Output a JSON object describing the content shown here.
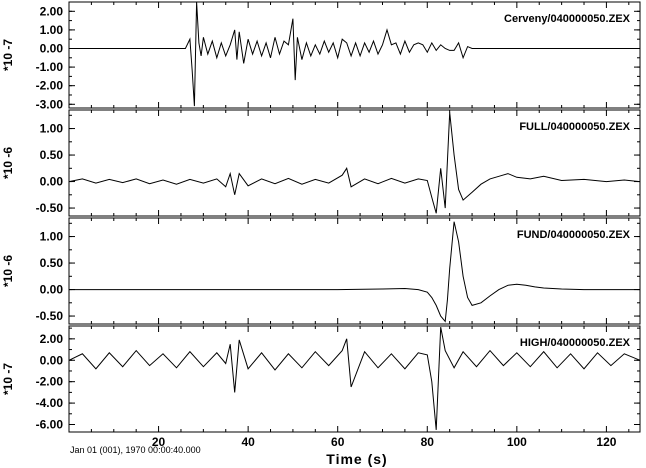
{
  "chart_data": {
    "type": "line",
    "xlabel": "Time (s)",
    "footer": "Jan 01 (001), 1970 00:00:40.000",
    "xlim": [
      0,
      127.5
    ],
    "xticks": [
      20,
      40,
      60,
      80,
      100,
      120
    ],
    "xtick_labels": [
      "20",
      "40",
      "60",
      "80",
      "100",
      "120"
    ],
    "panels": [
      {
        "name": "Cerveny/040000050.ZEX",
        "scale": "*10 -7",
        "ylim": [
          -3.2,
          2.5
        ],
        "yticks": [
          -3.0,
          -2.0,
          -1.0,
          0.0,
          1.0,
          2.0
        ],
        "ytick_labels": [
          "-3.00",
          "-2.00",
          "-1.00",
          "0.00",
          "1.00",
          "2.00"
        ],
        "series": [
          {
            "x": [
              0,
              26,
              27,
              27.5,
              28,
              28.5,
              29,
              29.5,
              30,
              31,
              32,
              33,
              34,
              35,
              36,
              37,
              37.5,
              38,
              39,
              40,
              41,
              42,
              43,
              44,
              45,
              46,
              47,
              48,
              49,
              50,
              50.5,
              51,
              52,
              53,
              54,
              55,
              56,
              57,
              58,
              59,
              60,
              61,
              62,
              63,
              64,
              65,
              66,
              67,
              68,
              69,
              70,
              71,
              72,
              73,
              74,
              75,
              76,
              77,
              78,
              79,
              80,
              81,
              82,
              83,
              84,
              85,
              86,
              87,
              88,
              89,
              90,
              127.5
            ],
            "y": [
              0,
              0,
              0.5,
              -1.2,
              -3.1,
              2.5,
              0.3,
              -0.4,
              0.6,
              -0.3,
              0.4,
              -0.5,
              0.3,
              -0.4,
              0.2,
              1.0,
              -0.6,
              0.9,
              -0.8,
              0.5,
              -0.3,
              0.4,
              -0.4,
              0.3,
              -0.5,
              0.6,
              -0.3,
              0.4,
              0.2,
              1.6,
              -1.7,
              0.6,
              -0.6,
              0.3,
              -0.4,
              0.2,
              -0.3,
              0.4,
              -0.2,
              0.3,
              -0.5,
              0.5,
              0.3,
              -0.4,
              0.3,
              -0.4,
              0.3,
              -0.2,
              0.4,
              -0.3,
              0.2,
              1.0,
              0.2,
              0.3,
              -0.3,
              0.4,
              -0.2,
              0.2,
              0.3,
              0.2,
              -0.2,
              0.3,
              -0.1,
              0.2,
              0.0,
              -0.1,
              -0.1,
              0.3,
              -0.5,
              0.1,
              0,
              0
            ]
          }
        ]
      },
      {
        "name": "FULL/040000050.ZEX",
        "scale": "*10 -6",
        "ylim": [
          -0.65,
          1.35
        ],
        "yticks": [
          -0.5,
          0.0,
          0.5,
          1.0
        ],
        "ytick_labels": [
          "-0.50",
          "0.00",
          "0.50",
          "1.00"
        ],
        "series": [
          {
            "x": [
              0,
              3,
              6,
              9,
              12,
              15,
              18,
              21,
              24,
              27,
              30,
              33,
              35,
              36,
              37,
              38,
              40,
              43,
              46,
              49,
              52,
              55,
              58,
              61,
              62,
              63,
              66,
              69,
              72,
              75,
              78,
              80,
              81,
              82,
              83,
              84,
              85,
              86,
              87,
              88,
              90,
              92,
              94,
              96,
              98,
              100,
              103,
              106,
              110,
              115,
              120,
              124,
              127.5
            ],
            "y": [
              0.0,
              0.05,
              -0.03,
              0.04,
              -0.02,
              0.05,
              -0.04,
              0.03,
              -0.05,
              0.04,
              -0.03,
              0.05,
              -0.1,
              0.15,
              -0.25,
              0.15,
              -0.08,
              0.05,
              -0.04,
              0.06,
              -0.05,
              0.04,
              -0.03,
              0.12,
              0.25,
              -0.1,
              0.05,
              -0.04,
              0.06,
              -0.03,
              0.05,
              0.02,
              -0.3,
              -0.6,
              0.25,
              -0.5,
              1.3,
              0.5,
              -0.15,
              -0.35,
              -0.2,
              -0.05,
              0.05,
              0.1,
              0.15,
              0.08,
              0.05,
              0.1,
              0.02,
              0.04,
              0.0,
              0.03,
              0.0
            ]
          }
        ]
      },
      {
        "name": "FUND/040000050.ZEX",
        "scale": "*10 -6",
        "ylim": [
          -0.65,
          1.35
        ],
        "yticks": [
          -0.5,
          0.0,
          0.5,
          1.0
        ],
        "ytick_labels": [
          "-0.50",
          "0.00",
          "0.50",
          "1.00"
        ],
        "series": [
          {
            "x": [
              0,
              60,
              70,
              75,
              78,
              80,
              81,
              82,
              83,
              84,
              84.5,
              85,
              86,
              87,
              88,
              89,
              90,
              92,
              94,
              96,
              98,
              100,
              102,
              104,
              106,
              108,
              110,
              115,
              127.5
            ],
            "y": [
              0,
              0,
              0.01,
              0.02,
              0.0,
              -0.05,
              -0.15,
              -0.3,
              -0.5,
              -0.6,
              -0.2,
              0.4,
              1.28,
              0.9,
              0.25,
              -0.15,
              -0.3,
              -0.25,
              -0.12,
              0.0,
              0.08,
              0.1,
              0.08,
              0.05,
              0.03,
              0.02,
              0.01,
              0.0,
              0.0
            ]
          }
        ]
      },
      {
        "name": "HIGH/040000050.ZEX",
        "scale": "*10 -7",
        "ylim": [
          -6.7,
          3.2
        ],
        "yticks": [
          -6.0,
          -4.0,
          -2.0,
          0.0,
          2.0
        ],
        "ytick_labels": [
          "-6.00",
          "-4.00",
          "-2.00",
          "0.00",
          "2.00"
        ],
        "series": [
          {
            "x": [
              0,
              3,
              6,
              9,
              12,
              15,
              18,
              21,
              24,
              27,
              30,
              33,
              35,
              36,
              37,
              38,
              40,
              43,
              46,
              49,
              52,
              55,
              58,
              61,
              62,
              63,
              66,
              69,
              72,
              75,
              78,
              80,
              81,
              82,
              83,
              84,
              86,
              88,
              91,
              94,
              97,
              100,
              103,
              106,
              109,
              112,
              115,
              118,
              121,
              124,
              127.5
            ],
            "y": [
              0.0,
              0.6,
              -0.8,
              0.7,
              -0.6,
              0.9,
              -0.5,
              0.6,
              -0.7,
              0.8,
              -0.6,
              0.7,
              -0.3,
              1.5,
              -3.0,
              1.9,
              -0.8,
              0.7,
              -0.9,
              0.6,
              -0.7,
              0.8,
              -0.5,
              0.9,
              2.0,
              -2.5,
              0.8,
              -0.7,
              0.6,
              -0.8,
              0.7,
              0.5,
              -2.0,
              -6.5,
              3.1,
              0.9,
              -0.7,
              0.8,
              -0.6,
              0.9,
              -0.5,
              0.7,
              -0.6,
              0.8,
              -0.7,
              0.6,
              -0.8,
              0.7,
              -0.5,
              0.6,
              0.0
            ]
          }
        ]
      }
    ]
  }
}
